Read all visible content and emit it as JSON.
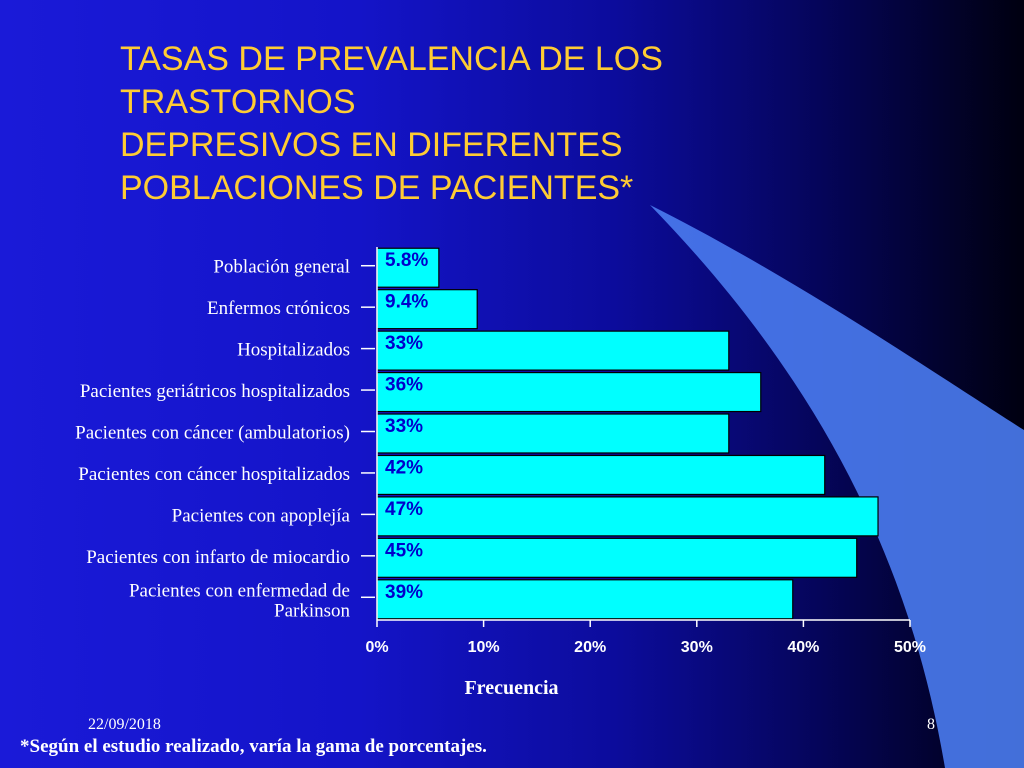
{
  "slide": {
    "title_lines": [
      "TASAS DE PREVALENCIA DE LOS",
      "TRASTORNOS",
      "DEPRESIVOS EN DIFERENTES",
      "POBLACIONES DE PACIENTES*"
    ],
    "date": "22/09/2018",
    "page_number": "8",
    "footnote": "*Según el estudio realizado, varía la gama de porcentajes."
  },
  "colors": {
    "bar_fill": "#00ffff",
    "bar_stroke": "#000000",
    "title": "#ffcc33",
    "data_label": "#0000cc",
    "text": "#ffffff",
    "swoosh": "#4a7bf0"
  },
  "chart_data": {
    "type": "bar",
    "orientation": "horizontal",
    "categories": [
      [
        "Población general"
      ],
      [
        "Enfermos crónicos"
      ],
      [
        "Hospitalizados"
      ],
      [
        "Pacientes geriátricos hospitalizados"
      ],
      [
        "Pacientes con cáncer (ambulatorios)"
      ],
      [
        "Pacientes con cáncer hospitalizados"
      ],
      [
        "Pacientes con apoplejía"
      ],
      [
        "Pacientes con infarto de miocardio"
      ],
      [
        "Pacientes con enfermedad de",
        "Parkinson"
      ]
    ],
    "values": [
      5.8,
      9.4,
      33,
      36,
      33,
      42,
      47,
      45,
      39
    ],
    "data_labels": [
      "5.8%",
      "9.4%",
      "33%",
      "36%",
      "33%",
      "42%",
      "47%",
      "45%",
      "39%"
    ],
    "xlabel": "Frecuencia",
    "xlim": [
      0,
      50
    ],
    "x_ticks": [
      0,
      10,
      20,
      30,
      40,
      50
    ],
    "x_tick_labels": [
      "0%",
      "10%",
      "20%",
      "30%",
      "40%",
      "50%"
    ],
    "grid": false,
    "legend": "none"
  }
}
